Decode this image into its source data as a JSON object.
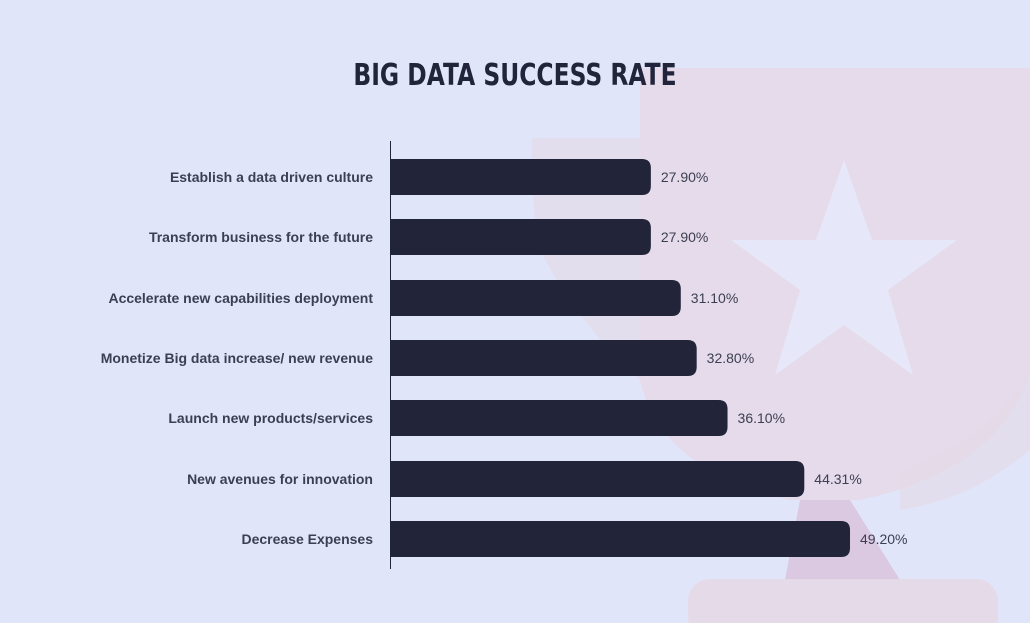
{
  "chart_data": {
    "type": "bar",
    "orientation": "horizontal",
    "title": "BIG DATA SUCCESS RATE",
    "categories": [
      "Establish a data driven culture",
      "Transform business for the future",
      "Accelerate new capabilities deployment",
      "Monetize Big data increase/ new revenue",
      "Launch new products/services",
      "New avenues for innovation",
      "Decrease Expenses"
    ],
    "values": [
      27.9,
      27.9,
      31.1,
      32.8,
      36.1,
      44.31,
      49.2
    ],
    "value_labels": [
      "27.90%",
      "27.90%",
      "31.10%",
      "32.80%",
      "36.10%",
      "44.31%",
      "49.20%"
    ],
    "xlabel": "",
    "ylabel": "",
    "xlim": [
      0,
      100
    ],
    "grid": false,
    "colors": {
      "bar": "#22243a",
      "background": "#e1e5fa",
      "trophy": "#e8d6e2",
      "star": "#e6e8fa"
    }
  }
}
